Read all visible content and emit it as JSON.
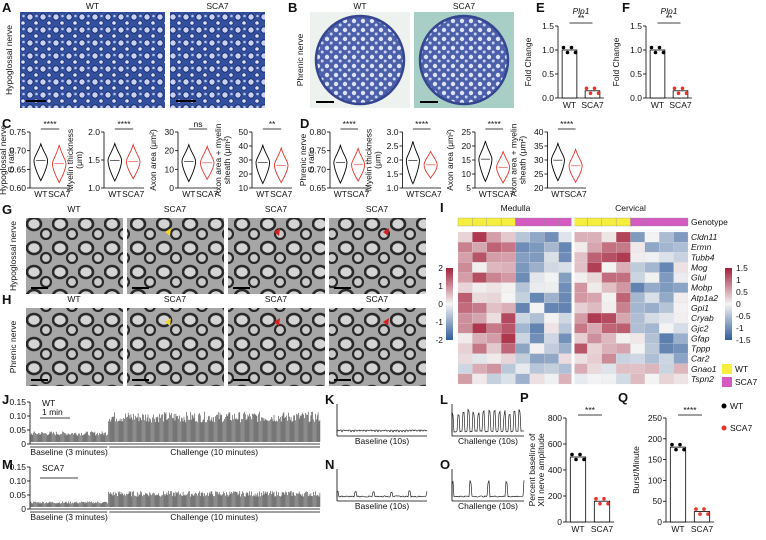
{
  "A": {
    "label": "A",
    "side": "Hypoglossal nerve",
    "titles": [
      "WT",
      "SCA7"
    ]
  },
  "B": {
    "label": "B",
    "side": "Phrenic nerve",
    "titles": [
      "WT",
      "SCA7"
    ]
  },
  "E": {
    "label": "E",
    "title": "Plp1",
    "ylabel": [
      "Fold Change"
    ],
    "ylim": [
      0,
      1.5
    ],
    "yticks": [
      {
        "value": 0,
        "label": "0.0"
      },
      {
        "value": 0.5,
        "label": "0.5"
      },
      {
        "value": 1,
        "label": "1.0"
      },
      {
        "value": 1.5,
        "label": "1.5"
      }
    ],
    "sig": "**",
    "categories": [
      "WT",
      "SCA7"
    ],
    "values": [
      1.0,
      0.15
    ],
    "colors": [
      "#000000",
      "#e8332a"
    ]
  },
  "F": {
    "label": "F",
    "title": "Plp1",
    "ylabel": [
      "Fold Change"
    ],
    "ylim": [
      0,
      1.5
    ],
    "yticks": [
      {
        "value": 0,
        "label": "0.0"
      },
      {
        "value": 0.5,
        "label": "0.5"
      },
      {
        "value": 1,
        "label": "1.0"
      },
      {
        "value": 1.5,
        "label": "1.5"
      }
    ],
    "sig": "**",
    "categories": [
      "WT",
      "SCA7"
    ],
    "values": [
      1.0,
      0.15
    ],
    "colors": [
      "#000000",
      "#e8332a"
    ]
  },
  "C": {
    "label": "C",
    "side": "Hypoglossal nerve",
    "plots": [
      {
        "ylabel": [
          "G ratio"
        ],
        "yticks": [
          "0.75",
          "0.70",
          "0.65",
          "0.60"
        ],
        "sig": "****",
        "categories": [
          "WT",
          "SCA7"
        ]
      },
      {
        "ylabel": [
          "Myelin thickness",
          "(μm)"
        ],
        "yticks": [
          "2.0",
          "1.5",
          "1.0"
        ],
        "sig": "****",
        "categories": [
          "WT",
          "SCA7"
        ]
      },
      {
        "ylabel": [
          "Axon area (μm²)"
        ],
        "yticks": [
          "30",
          "20",
          "10",
          "0"
        ],
        "sig": "ns",
        "categories": [
          "WT",
          "SCA7"
        ]
      },
      {
        "ylabel": [
          "Axon area + myelin",
          "sheath (μm²)"
        ],
        "yticks": [
          "50",
          "40",
          "30",
          "20",
          "10"
        ],
        "sig": "**",
        "categories": [
          "WT",
          "SCA7"
        ]
      }
    ]
  },
  "D": {
    "label": "D",
    "side": "Phrenic nerve",
    "plots": [
      {
        "ylabel": [
          "G ratio"
        ],
        "yticks": [
          "0.80",
          "0.75",
          "0.70",
          "0.65"
        ],
        "sig": "****",
        "categories": [
          "WT",
          "SCA7"
        ]
      },
      {
        "ylabel": [
          "Myelin thickness",
          "(μm)"
        ],
        "yticks": [
          "3.0",
          "2.5",
          "2.0",
          "1.5",
          "1.0"
        ],
        "sig": "****",
        "categories": [
          "WT",
          "SCA7"
        ]
      },
      {
        "ylabel": [
          "Axon area (μm²)"
        ],
        "yticks": [
          "25",
          "20",
          "15",
          "10",
          "5"
        ],
        "sig": "****",
        "categories": [
          "WT",
          "SCA7"
        ]
      },
      {
        "ylabel": [
          "Axon area + myelin",
          "sheath (μm²)"
        ],
        "yticks": [
          "40",
          "35",
          "30",
          "25",
          "20"
        ],
        "sig": "****",
        "categories": [
          "WT",
          "SCA7"
        ]
      }
    ]
  },
  "G": {
    "label": "G",
    "side": "Hypoglossal nerve",
    "titles": [
      "WT",
      "SCA7",
      "SCA7",
      "SCA7"
    ]
  },
  "H": {
    "label": "H",
    "side": "Phrenic nerve",
    "titles": [
      "WT",
      "SCA7",
      "SCA7",
      "SCA7"
    ]
  },
  "I": {
    "label": "I",
    "regions": [
      "Medulla",
      "Cervical"
    ],
    "genotype": "Genotype",
    "genes": [
      "Cldn11",
      "Ermn",
      "Tubb4",
      "Mog",
      "Glul",
      "Mobp",
      "Atp1a2",
      "Gpi1",
      "Cryab",
      "Gjc2",
      "Gfap",
      "Tppp",
      "Car2",
      "Gnao1",
      "Tspn2"
    ],
    "scale_left": [
      "2",
      "1",
      "0",
      "-1",
      "-2"
    ],
    "scale_right": [
      "1.5",
      "1",
      "0.5",
      "0",
      "-0.5",
      "-1",
      "-1.5"
    ],
    "legend": [
      "WT",
      "SCA7"
    ]
  },
  "J": {
    "label": "J",
    "group": "WT",
    "scalebar": "1 min",
    "yticks": [
      "0.15",
      "0.10",
      "0.05",
      "0"
    ],
    "baseline": "Baseline (3 minutes)",
    "challenge": "Challenge (10 minutes)"
  },
  "K": {
    "label": "K",
    "caption": "Baseline (10s)"
  },
  "L": {
    "label": "L",
    "caption": "Challenge (10s)"
  },
  "M": {
    "label": "M",
    "group": "SCA7",
    "yticks": [
      "0.15",
      "0.10",
      "0.05",
      "0"
    ],
    "baseline": "Baseline (3 minutes)",
    "challenge": "Challenge (10 minutes)"
  },
  "N": {
    "label": "N",
    "caption": "Baseline (10s)"
  },
  "O": {
    "label": "O",
    "caption": "Challenge (10s)"
  },
  "P": {
    "label": "P",
    "ylabel": [
      "Percent baseline of",
      "XII nerve amplitude"
    ],
    "ylim": [
      0,
      800
    ],
    "yticks": [
      0,
      200,
      400,
      600,
      800
    ],
    "sig": "***",
    "categories": [
      "WT",
      "SCA7"
    ],
    "values": [
      500,
      160
    ],
    "colors": [
      "#000000",
      "#e8332a"
    ]
  },
  "Q": {
    "label": "Q",
    "ylabel": [
      "Burst/Minute"
    ],
    "ylim": [
      0,
      250
    ],
    "yticks": [
      0,
      50,
      100,
      150,
      200,
      250
    ],
    "sig": "****",
    "categories": [
      "WT",
      "SCA7"
    ],
    "values": [
      180,
      25
    ],
    "colors": [
      "#000000",
      "#e8332a"
    ],
    "legend": [
      "WT",
      "SCA7"
    ]
  }
}
